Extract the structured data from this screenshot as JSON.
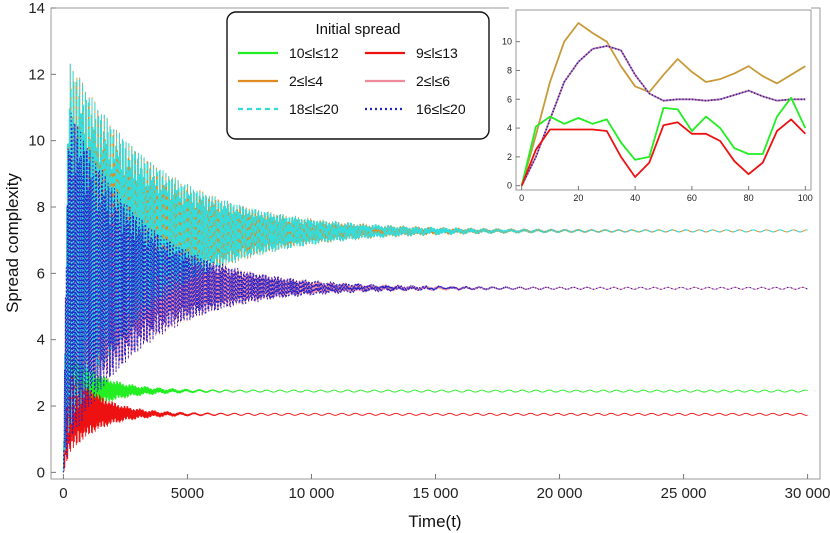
{
  "chart_data": [
    {
      "type": "line",
      "xlabel": "Time(t)",
      "ylabel": "Spread complexity",
      "xlim": [
        -500,
        30500
      ],
      "ylim": [
        -0.2,
        14
      ],
      "xticks": [
        0,
        5000,
        10000,
        15000,
        20000,
        25000,
        30000
      ],
      "xtick_labels": [
        "0",
        "5000",
        "10 000",
        "15 000",
        "20 000",
        "25 000",
        "30 000"
      ],
      "yticks": [
        0,
        2,
        4,
        6,
        8,
        10,
        12,
        14
      ],
      "ytick_labels": [
        "0",
        "2",
        "4",
        "6",
        "8",
        "10",
        "12",
        "14"
      ],
      "grid": false,
      "legend": {
        "title": "Initial spread",
        "placement": "top-center",
        "columns": 2
      },
      "series": [
        {
          "name": "10≤l≤12",
          "color": "#22ee22",
          "dash": "solid",
          "saturation": 2.45,
          "peak": 4.9,
          "envelope_top": 3.9,
          "envelope_bottom": 1.2,
          "decay_time": 1300
        },
        {
          "name": "9≤l≤13",
          "color": "#ee1111",
          "dash": "solid",
          "saturation": 1.75,
          "peak": 3.9,
          "envelope_top": 3.6,
          "envelope_bottom": 0.3,
          "decay_time": 1200
        },
        {
          "name": "2≤l≤4",
          "color": "#e08a20",
          "dash": "solid",
          "saturation": 7.28,
          "peak": 13.4,
          "envelope_top": 12.8,
          "envelope_bottom": 0.9,
          "decay_time": 3600
        },
        {
          "name": "2≤l≤6",
          "color": "#f08a9a",
          "dash": "solid",
          "saturation": 5.55,
          "peak": 12.1,
          "envelope_top": 11.5,
          "envelope_bottom": 0.4,
          "decay_time": 3000
        },
        {
          "name": "18≤l≤20",
          "color": "#33dddd",
          "dash": "dashed",
          "saturation": 7.28,
          "peak": 13.4,
          "envelope_top": 12.8,
          "envelope_bottom": 0.9,
          "decay_time": 3600
        },
        {
          "name": "16≤l≤20",
          "color": "#2222cc",
          "dash": "dotted",
          "saturation": 5.55,
          "peak": 12.1,
          "envelope_top": 11.5,
          "envelope_bottom": 0.4,
          "decay_time": 3000
        }
      ]
    },
    {
      "type": "line",
      "inset": true,
      "placement": "top-right",
      "xlim": [
        -2,
        102
      ],
      "ylim": [
        -0.3,
        12.2
      ],
      "xticks": [
        0,
        20,
        40,
        60,
        80,
        100
      ],
      "xtick_labels": [
        "0",
        "20",
        "40",
        "60",
        "80",
        "100"
      ],
      "yticks": [
        0,
        2,
        4,
        6,
        8,
        10
      ],
      "ytick_labels": [
        "0",
        "2",
        "4",
        "6",
        "8",
        "10"
      ],
      "x": [
        0,
        5,
        10,
        15,
        20,
        25,
        30,
        35,
        40,
        45,
        50,
        55,
        60,
        65,
        70,
        75,
        80,
        85,
        90,
        95,
        100
      ],
      "series": [
        {
          "name": "2≤l≤4",
          "color": "#c89a3a",
          "dash": "solid",
          "values": [
            0,
            3.5,
            7.2,
            10.0,
            11.3,
            10.6,
            10.0,
            8.3,
            6.9,
            6.5,
            7.7,
            8.8,
            7.9,
            7.2,
            7.4,
            7.8,
            8.3,
            7.6,
            7.1,
            7.7,
            8.3
          ]
        },
        {
          "name": "2≤l≤6",
          "color": "#c070a0",
          "dash": "solid",
          "values": [
            0,
            2.0,
            4.6,
            7.2,
            8.6,
            9.5,
            9.7,
            9.4,
            7.7,
            6.4,
            5.9,
            6.0,
            6.0,
            5.9,
            6.0,
            6.3,
            6.6,
            6.2,
            5.9,
            6.0,
            6.0
          ]
        },
        {
          "name": "16≤l≤20",
          "color": "#2222aa",
          "dash": "dotted",
          "values": [
            0,
            2.0,
            4.6,
            7.2,
            8.6,
            9.5,
            9.7,
            9.4,
            7.7,
            6.4,
            5.9,
            6.0,
            6.0,
            5.9,
            6.0,
            6.3,
            6.6,
            6.2,
            5.9,
            6.0,
            6.0
          ]
        },
        {
          "name": "10≤l≤12",
          "color": "#22ee22",
          "dash": "solid",
          "values": [
            0,
            4.1,
            4.8,
            4.3,
            4.7,
            4.3,
            4.6,
            3.0,
            1.8,
            2.0,
            5.4,
            5.3,
            3.8,
            4.8,
            4.0,
            2.6,
            2.2,
            2.2,
            4.8,
            6.1,
            4.0
          ]
        },
        {
          "name": "9≤l≤13",
          "color": "#ee1111",
          "dash": "solid",
          "values": [
            0,
            2.5,
            3.9,
            3.9,
            3.9,
            3.9,
            3.8,
            2.0,
            0.6,
            1.6,
            4.2,
            4.4,
            3.6,
            3.6,
            3.1,
            1.7,
            0.8,
            1.6,
            3.8,
            4.6,
            3.6
          ]
        }
      ]
    }
  ]
}
